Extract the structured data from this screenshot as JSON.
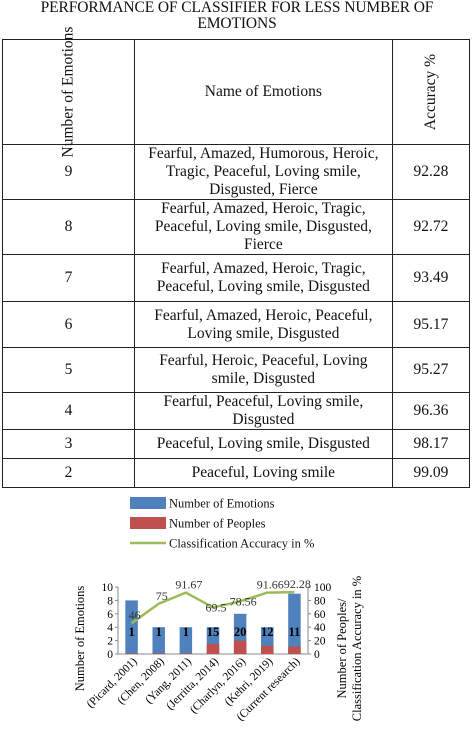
{
  "title": "PERFORMANCE OF CLASSIFIER FOR LESS NUMBER OF EMOTIONS",
  "table": {
    "headers": {
      "count": "Number of Emotions",
      "names": "Name of Emotions",
      "accuracy": "Accuracy %"
    },
    "rows": [
      {
        "count": "9",
        "names": "Fearful, Amazed, Humorous, Heroic, Tragic, Peaceful, Loving smile, Disgusted, Fierce",
        "accuracy": "92.28"
      },
      {
        "count": "8",
        "names": "Fearful, Amazed, Heroic, Tragic, Peaceful, Loving smile, Disgusted, Fierce",
        "accuracy": "92.72"
      },
      {
        "count": "7",
        "names": "Fearful, Amazed, Heroic, Tragic, Peaceful, Loving smile, Disgusted",
        "accuracy": "93.49"
      },
      {
        "count": "6",
        "names": "Fearful, Amazed, Heroic, Peaceful, Loving smile, Disgusted",
        "accuracy": "95.17"
      },
      {
        "count": "5",
        "names": "Fearful, Heroic, Peaceful, Loving smile, Disgusted",
        "accuracy": "95.27"
      },
      {
        "count": "4",
        "names": "Fearful, Peaceful, Loving smile, Disgusted",
        "accuracy": "96.36"
      },
      {
        "count": "3",
        "names": "Peaceful, Loving smile, Disgusted",
        "accuracy": "98.17"
      },
      {
        "count": "2",
        "names": "Peaceful, Loving smile",
        "accuracy": "99.09"
      }
    ]
  },
  "chart_data": {
    "type": "bar",
    "categories": [
      "(Picard, 2001)",
      "(Chen, 2008)",
      "(Yang, 2011)",
      "(Jerritta, 2014)",
      "(Charlyn, 2016)",
      "(Kehri, 2019)",
      "(Current research)"
    ],
    "series": [
      {
        "name": "Number of Emotions",
        "kind": "bar",
        "axis": "left",
        "color": "#4f81bd",
        "values": [
          8,
          4,
          4,
          4,
          6,
          4,
          9
        ]
      },
      {
        "name": "Number of Peoples",
        "kind": "bar",
        "axis": "right",
        "color": "#c0504d",
        "values": [
          1,
          1,
          1,
          15,
          20,
          12,
          11
        ]
      },
      {
        "name": "Classification Accuracy in %",
        "kind": "line",
        "axis": "right",
        "color": "#9bbb59",
        "values": [
          46,
          75,
          91.67,
          69.5,
          78.56,
          91.66,
          92.28
        ]
      }
    ],
    "bar_labels": [
      "1",
      "1",
      "1",
      "15",
      "20",
      "12",
      "11"
    ],
    "line_labels": [
      "46",
      "75",
      "91.67",
      "69.5",
      "78.56",
      "91.66",
      "92.28"
    ],
    "ylabel_left": "Number of Emotions",
    "ylabel_right": "Number of Peoples/ Classification Accuracy in %",
    "yticks_left": [
      "0",
      "2",
      "4",
      "6",
      "8",
      "10"
    ],
    "yticks_right": [
      "0",
      "20",
      "40",
      "60",
      "80",
      "100"
    ],
    "ylim_left": [
      0,
      10
    ],
    "ylim_right": [
      0,
      100
    ],
    "legend_position": "top",
    "grid": false
  }
}
